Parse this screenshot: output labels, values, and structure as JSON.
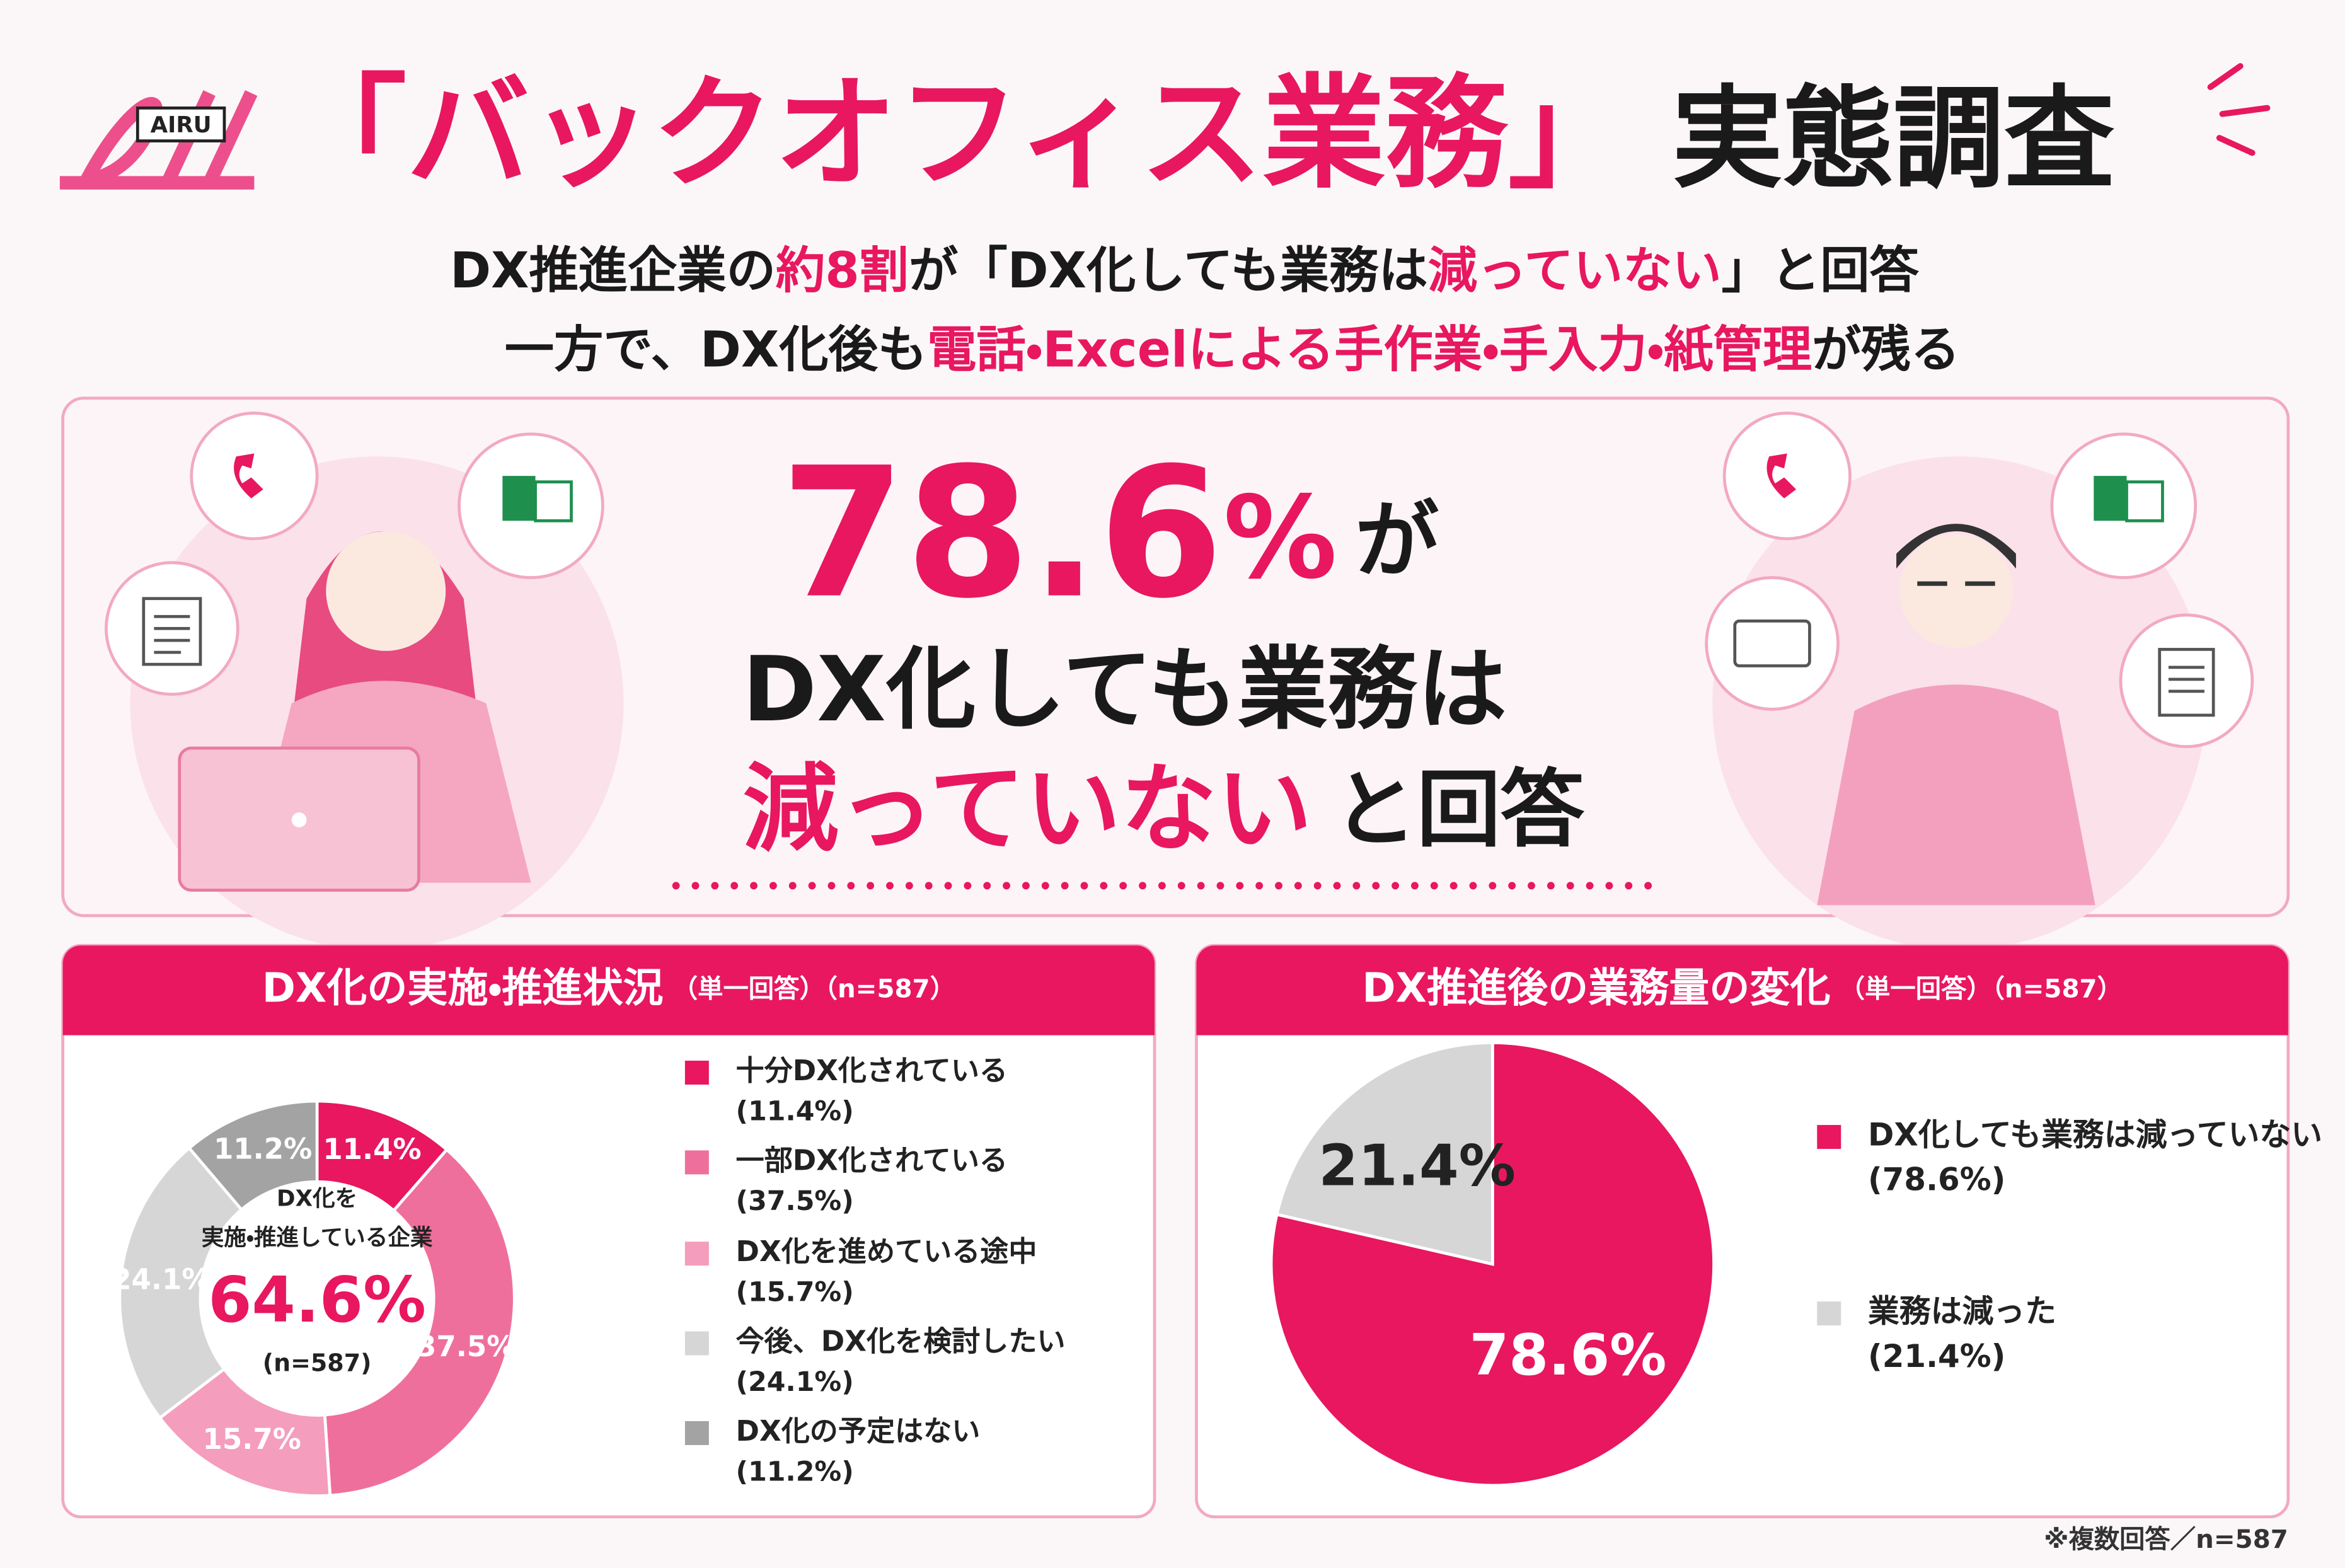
{
  "header": {
    "logo": "AIRU",
    "title_accent": "「バックオフィス業務」",
    "title_rest": "実態調査",
    "subtitle_lines": [
      [
        {
          "text": "DX推進企業の",
          "accent": false
        },
        {
          "text": "約8割",
          "accent": true
        },
        {
          "text": "が「DX化しても業務は",
          "accent": false
        },
        {
          "text": "減っていない",
          "accent": true
        },
        {
          "text": "」と回答",
          "accent": false
        }
      ],
      [
        {
          "text": "一方で、DX化後も",
          "accent": false
        },
        {
          "text": "電話・Excelによる手作業・手入力・紙管理",
          "accent": true
        },
        {
          "text": "が残る",
          "accent": false
        }
      ]
    ]
  },
  "hero": {
    "value": "78.6",
    "unit": "%",
    "suffix": "が",
    "line2": "DX化しても業務は",
    "line3_accent": "減っていない",
    "line3_rest": "と回答"
  },
  "chart_data": [
    {
      "type": "donut",
      "title": "DX化の実施・推進状況",
      "subtitle": "（単一回答）（n=587）",
      "categories": [
        "十分DX化されている",
        "一部DX化されている",
        "DX化を進めている途中",
        "今後、DX化を検討したい",
        "DX化の予定はない"
      ],
      "values": [
        11.4,
        37.5,
        15.7,
        24.1,
        11.2
      ],
      "value_labels": [
        "11.4%",
        "37.5%",
        "15.7%",
        "24.1%",
        "11.2%"
      ],
      "legend_value_labels": [
        "(11.4%)",
        "(37.5%)",
        "(15.7%)",
        "(24.1%)",
        "(11.2%)"
      ],
      "colors": [
        "#e8175f",
        "#ef6f9c",
        "#f49dbd",
        "#d6d6d6",
        "#a3a3a3"
      ],
      "center_label": [
        "DX化を",
        "実施・推進している企業"
      ],
      "center_value": "64.6%",
      "center_note": "(n=587)"
    },
    {
      "type": "pie",
      "title": "DX推進後の業務量の変化",
      "subtitle": "（単一回答）（n=587）",
      "categories": [
        "DX化しても業務は減っていない",
        "業務は減った"
      ],
      "values": [
        78.6,
        21.4
      ],
      "value_labels": [
        "78.6%",
        "21.4%"
      ],
      "legend_value_labels": [
        "(78.6%)",
        "(21.4%)"
      ],
      "colors": [
        "#e8175f",
        "#d6d6d6"
      ]
    }
  ],
  "footnote": "※複数回答／n=587"
}
